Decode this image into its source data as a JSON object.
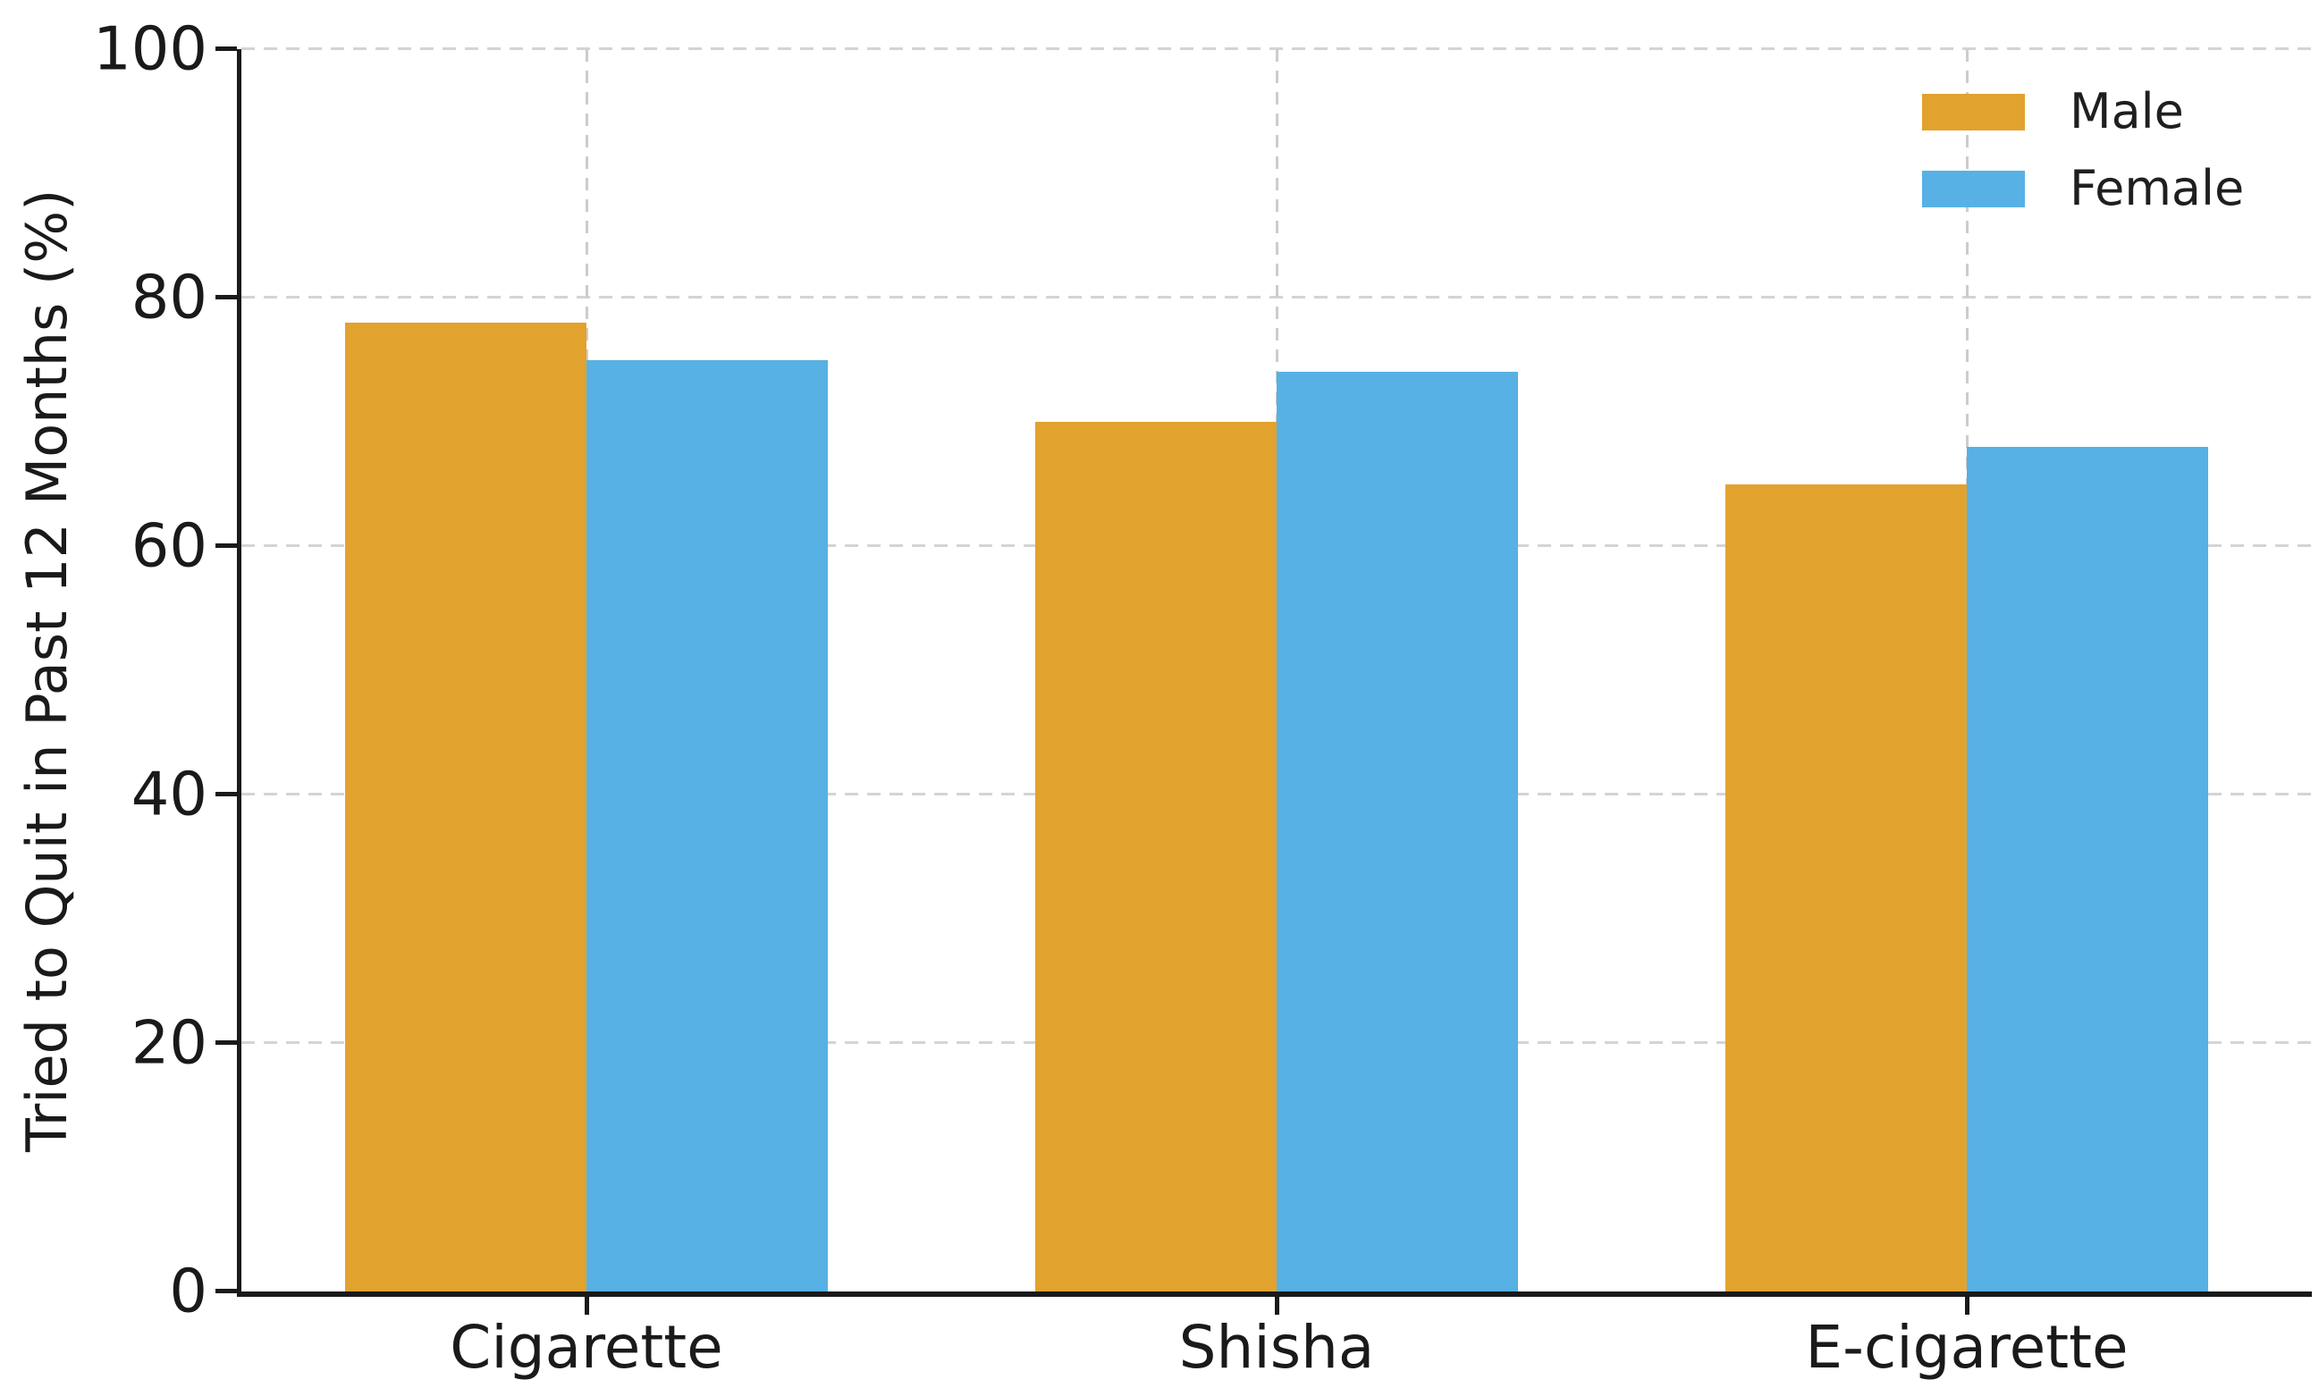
{
  "chart_data": {
    "type": "bar",
    "title": "",
    "categories": [
      "Cigarette",
      "Shisha",
      "E-cigarette"
    ],
    "series": [
      {
        "name": "Male",
        "color": "#E2A22E",
        "values": [
          78,
          70,
          65
        ]
      },
      {
        "name": "Female",
        "color": "#57B1E4",
        "values": [
          75,
          74,
          68
        ]
      }
    ],
    "xlabel": "",
    "ylabel": "Tried to Quit in Past 12 Months (%)",
    "ylim": [
      0,
      100
    ],
    "yticks": [
      0,
      20,
      40,
      60,
      80,
      100
    ],
    "bar_width_category_fraction": 0.35,
    "grid": {
      "style": "dashed",
      "axes": "both",
      "color": "#d4d4d4"
    },
    "legend": {
      "position": "upper-right",
      "entries": [
        "Male",
        "Female"
      ]
    },
    "axis_color": "#1a1a1a",
    "text_color": "#1a1a1a"
  }
}
